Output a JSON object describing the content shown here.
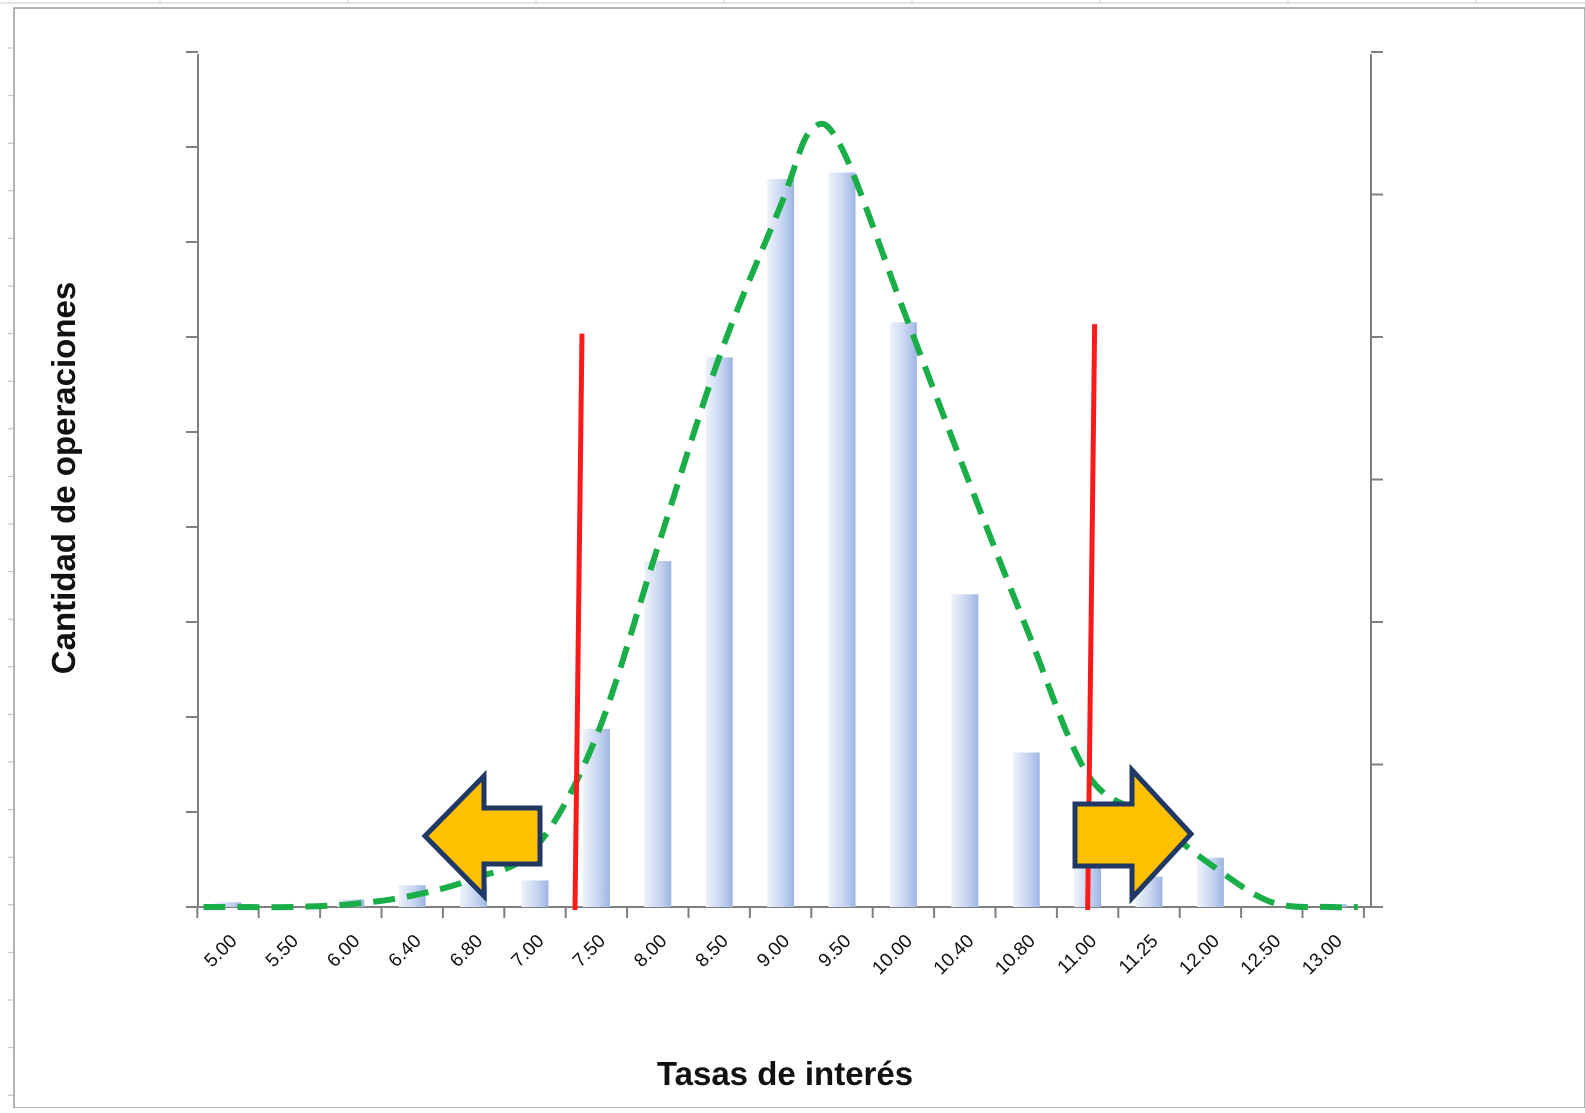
{
  "chart_data": {
    "type": "bar",
    "title": "",
    "xlabel": "Tasas de interés",
    "ylabel": "Cantidad de operaciones",
    "categories": [
      "5.00",
      "5.50",
      "6.00",
      "6.40",
      "6.80",
      "7.00",
      "7.50",
      "8.00",
      "8.50",
      "9.00",
      "9.50",
      "10.00",
      "10.40",
      "10.80",
      "11.00",
      "11.25",
      "12.00",
      "12.50",
      "13.00"
    ],
    "values": [
      0.5,
      0,
      0.8,
      2.3,
      2.5,
      2.8,
      18.8,
      36.5,
      58.0,
      76.8,
      77.5,
      61.7,
      33.0,
      16.3,
      4.5,
      3.2,
      5.2,
      0,
      0.3
    ],
    "ylim": [
      0,
      90
    ],
    "grid": false,
    "legend": "none",
    "fitted_curve": {
      "style": "dashed",
      "color": "#1AAE48",
      "points": [
        [
          -0.4,
          0
        ],
        [
          0,
          0
        ],
        [
          1,
          0
        ],
        [
          2,
          0.3
        ],
        [
          3,
          1.2
        ],
        [
          4,
          3.0
        ],
        [
          5,
          6.2
        ],
        [
          6,
          18
        ],
        [
          7,
          38
        ],
        [
          8,
          58
        ],
        [
          9,
          74
        ],
        [
          9.5,
          82
        ],
        [
          10,
          80
        ],
        [
          11,
          63
        ],
        [
          12,
          46
        ],
        [
          13,
          29.5
        ],
        [
          14,
          14
        ],
        [
          15,
          9.5
        ],
        [
          16,
          4.5
        ],
        [
          17,
          0.5
        ],
        [
          18,
          0
        ],
        [
          18.4,
          0
        ]
      ]
    },
    "thresholds": [
      {
        "position": 5.7,
        "ymax": 60.5,
        "color": "#FF1A1A"
      },
      {
        "position": 14.05,
        "ymax": 61.5,
        "color": "#FF1A1A"
      }
    ],
    "arrows": [
      {
        "direction": "left",
        "color": "#FFC000"
      },
      {
        "direction": "right",
        "color": "#FFC000"
      }
    ],
    "colors": {
      "bar_light": "#EEF2FB",
      "bar_dark": "#9DB4E4",
      "axis": "#7F7F7F",
      "arrow_outline": "#1F3864"
    }
  }
}
